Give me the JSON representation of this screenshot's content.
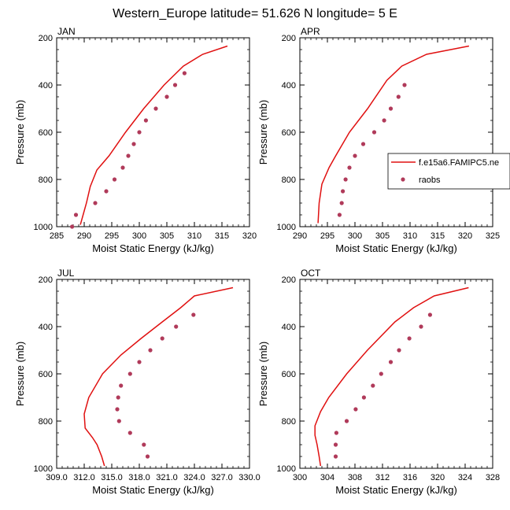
{
  "title": "Western_Europe  latitude= 51.626 N longitude= 5 E",
  "colors": {
    "model": "#e01010",
    "obs": "#b03a5a"
  },
  "legend": {
    "model_label": "f.e15a6.FAMIPC5.ne",
    "obs_label": "raobs"
  },
  "chart_data": [
    {
      "type": "line",
      "panel": "JAN",
      "xlabel": "Moist Static Energy (kJ/kg)",
      "ylabel": "Pressure (mb)",
      "xlim": [
        285,
        320
      ],
      "ylim": [
        1000,
        200
      ],
      "x_ticks": [
        "285",
        "290",
        "295",
        "300",
        "305",
        "310",
        "315",
        "320"
      ],
      "y_ticks": [
        "200",
        "400",
        "600",
        "800",
        "1000"
      ],
      "model": {
        "pressure": [
          992,
          950,
          900,
          830,
          760,
          700,
          600,
          500,
          400,
          320,
          270,
          235
        ],
        "mse": [
          289.3,
          289.8,
          290.4,
          291.1,
          292.3,
          294.5,
          297.5,
          300.8,
          304.5,
          308.0,
          311.5,
          316.0
        ]
      },
      "obs": {
        "pressure": [
          1000,
          950,
          900,
          850,
          800,
          750,
          700,
          650,
          600,
          550,
          500,
          450,
          400,
          350
        ],
        "mse": [
          287.8,
          288.5,
          292.0,
          294.0,
          295.5,
          297.0,
          298.0,
          299.0,
          300.0,
          301.2,
          303.0,
          305.0,
          306.5,
          308.2
        ]
      }
    },
    {
      "type": "line",
      "panel": "APR",
      "xlabel": "Moist Static Energy (kJ/kg)",
      "ylabel": "Pressure (mb)",
      "xlim": [
        290,
        325
      ],
      "ylim": [
        1000,
        200
      ],
      "x_ticks": [
        "290",
        "295",
        "300",
        "305",
        "310",
        "315",
        "320",
        "325"
      ],
      "y_ticks": [
        "200",
        "400",
        "600",
        "800",
        "1000"
      ],
      "model": {
        "pressure": [
          985,
          900,
          820,
          750,
          700,
          600,
          500,
          380,
          320,
          270,
          235
        ],
        "mse": [
          293.3,
          293.5,
          294.0,
          295.3,
          296.5,
          299.0,
          302.3,
          305.8,
          308.5,
          313.0,
          320.7
        ]
      },
      "obs": {
        "pressure": [
          950,
          900,
          850,
          800,
          750,
          700,
          650,
          600,
          550,
          500,
          450,
          400
        ],
        "mse": [
          297.2,
          297.6,
          297.8,
          298.3,
          299.0,
          300.0,
          301.5,
          303.5,
          305.3,
          306.5,
          307.9,
          309.0
        ]
      }
    },
    {
      "type": "line",
      "panel": "JUL",
      "xlabel": "Moist Static Energy (kJ/kg)",
      "ylabel": "Pressure (mb)",
      "xlim": [
        309,
        330
      ],
      "ylim": [
        1000,
        200
      ],
      "x_ticks": [
        "309.0",
        "312.0",
        "315.0",
        "318.0",
        "321.0",
        "324.0",
        "327.0",
        "330.0"
      ],
      "y_ticks": [
        "200",
        "400",
        "600",
        "800",
        "1000"
      ],
      "model": {
        "pressure": [
          990,
          950,
          900,
          870,
          830,
          770,
          700,
          600,
          520,
          450,
          380,
          320,
          270,
          235
        ],
        "mse": [
          314.2,
          313.9,
          313.4,
          312.9,
          312.1,
          312.0,
          312.5,
          314.0,
          316.0,
          318.2,
          320.5,
          322.5,
          324.0,
          328.2
        ]
      },
      "obs": {
        "pressure": [
          950,
          900,
          850,
          800,
          750,
          700,
          650,
          600,
          550,
          500,
          450,
          400,
          350
        ],
        "mse": [
          318.9,
          318.5,
          317.0,
          315.8,
          315.6,
          315.7,
          316.0,
          317.0,
          318.0,
          319.2,
          320.5,
          322.0,
          323.9
        ]
      }
    },
    {
      "type": "line",
      "panel": "OCT",
      "xlabel": "Moist Static Energy (kJ/kg)",
      "ylabel": "Pressure (mb)",
      "xlim": [
        300,
        328
      ],
      "ylim": [
        1000,
        200
      ],
      "x_ticks": [
        "300",
        "304",
        "308",
        "312",
        "316",
        "320",
        "324",
        "328"
      ],
      "y_ticks": [
        "200",
        "400",
        "600",
        "800",
        "1000"
      ],
      "model": {
        "pressure": [
          990,
          950,
          900,
          860,
          820,
          760,
          700,
          600,
          500,
          380,
          320,
          270,
          235
        ],
        "mse": [
          303.0,
          302.8,
          302.5,
          302.2,
          302.2,
          303.0,
          304.2,
          306.8,
          309.8,
          313.8,
          316.5,
          319.5,
          324.5
        ]
      },
      "obs": {
        "pressure": [
          950,
          900,
          850,
          800,
          750,
          700,
          650,
          600,
          550,
          500,
          450,
          400,
          350
        ],
        "mse": [
          305.2,
          305.2,
          305.3,
          306.8,
          308.1,
          309.3,
          310.6,
          311.8,
          313.2,
          314.4,
          315.9,
          317.6,
          318.9
        ]
      }
    }
  ]
}
